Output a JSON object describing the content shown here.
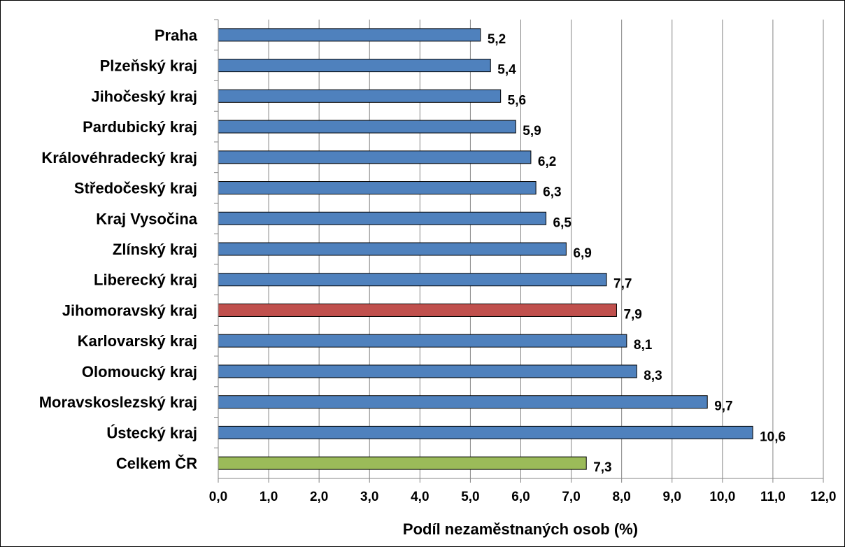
{
  "chart_data": {
    "type": "bar",
    "orientation": "horizontal",
    "categories": [
      "Praha",
      "Plzeňský kraj",
      "Jihočeský kraj",
      "Pardubický kraj",
      "Královéhradecký kraj",
      "Středočeský kraj",
      "Kraj Vysočina",
      "Zlínský kraj",
      "Liberecký kraj",
      "Jihomoravský kraj",
      "Karlovarský kraj",
      "Olomoucký kraj",
      "Moravskoslezský kraj",
      "Ústecký kraj",
      "Celkem ČR"
    ],
    "values": [
      5.2,
      5.4,
      5.6,
      5.9,
      6.2,
      6.3,
      6.5,
      6.9,
      7.7,
      7.9,
      8.1,
      8.3,
      9.7,
      10.6,
      7.3
    ],
    "value_labels": [
      "5,2",
      "5,4",
      "5,6",
      "5,9",
      "6,2",
      "6,3",
      "6,5",
      "6,9",
      "7,7",
      "7,9",
      "8,1",
      "8,3",
      "9,7",
      "10,6",
      "7,3"
    ],
    "bar_colors": [
      "#4f81bd",
      "#4f81bd",
      "#4f81bd",
      "#4f81bd",
      "#4f81bd",
      "#4f81bd",
      "#4f81bd",
      "#4f81bd",
      "#4f81bd",
      "#c0504d",
      "#4f81bd",
      "#4f81bd",
      "#4f81bd",
      "#4f81bd",
      "#9bbb59"
    ],
    "xlabel": "Podíl nezaměstnaných osob (%)",
    "ylabel": "",
    "title": "",
    "xlim": [
      0,
      12
    ],
    "xticks": [
      0,
      1,
      2,
      3,
      4,
      5,
      6,
      7,
      8,
      9,
      10,
      11,
      12
    ],
    "xtick_labels": [
      "0,0",
      "1,0",
      "2,0",
      "3,0",
      "4,0",
      "5,0",
      "6,0",
      "7,0",
      "8,0",
      "9,0",
      "10,0",
      "11,0",
      "12,0"
    ],
    "grid": "vertical",
    "legend": "none"
  }
}
